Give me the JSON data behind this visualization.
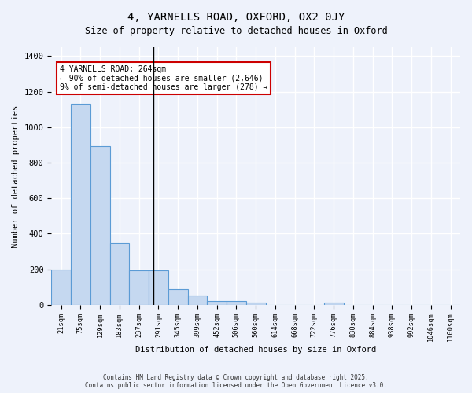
{
  "title_line1": "4, YARNELLS ROAD, OXFORD, OX2 0JY",
  "title_line2": "Size of property relative to detached houses in Oxford",
  "xlabel": "Distribution of detached houses by size in Oxford",
  "ylabel": "Number of detached properties",
  "bar_color": "#c5d8f0",
  "bar_edge_color": "#5b9bd5",
  "background_color": "#eef2fb",
  "grid_color": "#ffffff",
  "bin_labels": [
    "21sqm",
    "75sqm",
    "129sqm",
    "183sqm",
    "237sqm",
    "291sqm",
    "345sqm",
    "399sqm",
    "452sqm",
    "506sqm",
    "560sqm",
    "614sqm",
    "668sqm",
    "722sqm",
    "776sqm",
    "830sqm",
    "884sqm",
    "938sqm",
    "992sqm",
    "1046sqm",
    "1100sqm"
  ],
  "bar_values": [
    200,
    1130,
    895,
    350,
    195,
    195,
    90,
    55,
    20,
    20,
    15,
    0,
    0,
    0,
    15,
    0,
    0,
    0,
    0,
    0,
    0
  ],
  "vline_x": 4.74,
  "vline_color": "#000000",
  "annotation_text": "4 YARNELLS ROAD: 264sqm\n← 90% of detached houses are smaller (2,646)\n9% of semi-detached houses are larger (278) →",
  "annotation_box_color": "#ffffff",
  "annotation_edge_color": "#cc0000",
  "ylim": [
    0,
    1450
  ],
  "yticks": [
    0,
    200,
    400,
    600,
    800,
    1000,
    1200,
    1400
  ],
  "footer_line1": "Contains HM Land Registry data © Crown copyright and database right 2025.",
  "footer_line2": "Contains public sector information licensed under the Open Government Licence v3.0."
}
